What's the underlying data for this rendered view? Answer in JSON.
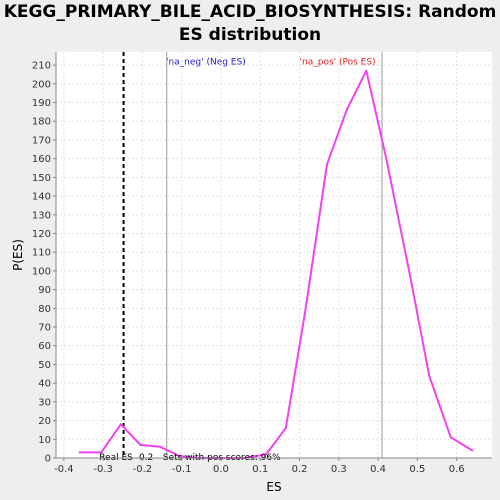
{
  "chart_data": {
    "type": "line",
    "title_line1": "KEGG_PRIMARY_BILE_ACID_BIOSYNTHESIS: Random",
    "title_line2": "ES distribution",
    "xlabel": "ES",
    "ylabel": "P(ES)",
    "xlim": [
      -0.42,
      0.69
    ],
    "ylim": [
      0,
      217
    ],
    "xticks": [
      -0.4,
      -0.3,
      -0.2,
      -0.1,
      0.0,
      0.1,
      0.2,
      0.3,
      0.4,
      0.5,
      0.6
    ],
    "xtick_labels": [
      "-0.4",
      "-0.3",
      "-0.2",
      "-0.1",
      "0.0",
      "0.1",
      "0.2",
      "0.3",
      "0.4",
      "0.5",
      "0.6"
    ],
    "yticks": [
      0,
      10,
      20,
      30,
      40,
      50,
      60,
      70,
      80,
      90,
      100,
      110,
      120,
      130,
      140,
      150,
      160,
      170,
      180,
      190,
      200,
      210
    ],
    "grid": true,
    "series": [
      {
        "color": "#ee44ee",
        "x": [
          -0.36,
          -0.305,
          -0.255,
          -0.205,
          -0.155,
          -0.105,
          -0.055,
          0.0,
          0.06,
          0.115,
          0.165,
          0.215,
          0.27,
          0.32,
          0.37,
          0.42,
          0.48,
          0.53,
          0.585,
          0.64
        ],
        "y": [
          3,
          3,
          18,
          7,
          6,
          1,
          0,
          0,
          0,
          2,
          16,
          79,
          157,
          186,
          207,
          161,
          99,
          44,
          11,
          4
        ]
      }
    ],
    "vlines": [
      {
        "x": -0.248,
        "style": "dashed",
        "color": "#000000"
      },
      {
        "x": -0.138,
        "style": "solid",
        "color": "#999999"
      },
      {
        "x": 0.41,
        "style": "solid",
        "color": "#999999"
      }
    ],
    "annotations": [
      {
        "text": "'na_neg' (Neg ES)",
        "color": "#2222cc",
        "x": -0.14,
        "y": 212
      },
      {
        "text": "'na_pos' (Pos ES)",
        "color": "#dd2222",
        "x": 0.2,
        "y": 212
      },
      {
        "text": "Real ES -0.2",
        "color": "#000000",
        "x": -0.31,
        "y": 0.5
      },
      {
        "text": "Sets with pos scores: 96%",
        "color": "#000000",
        "x": -0.148,
        "y": 0.5
      }
    ]
  }
}
